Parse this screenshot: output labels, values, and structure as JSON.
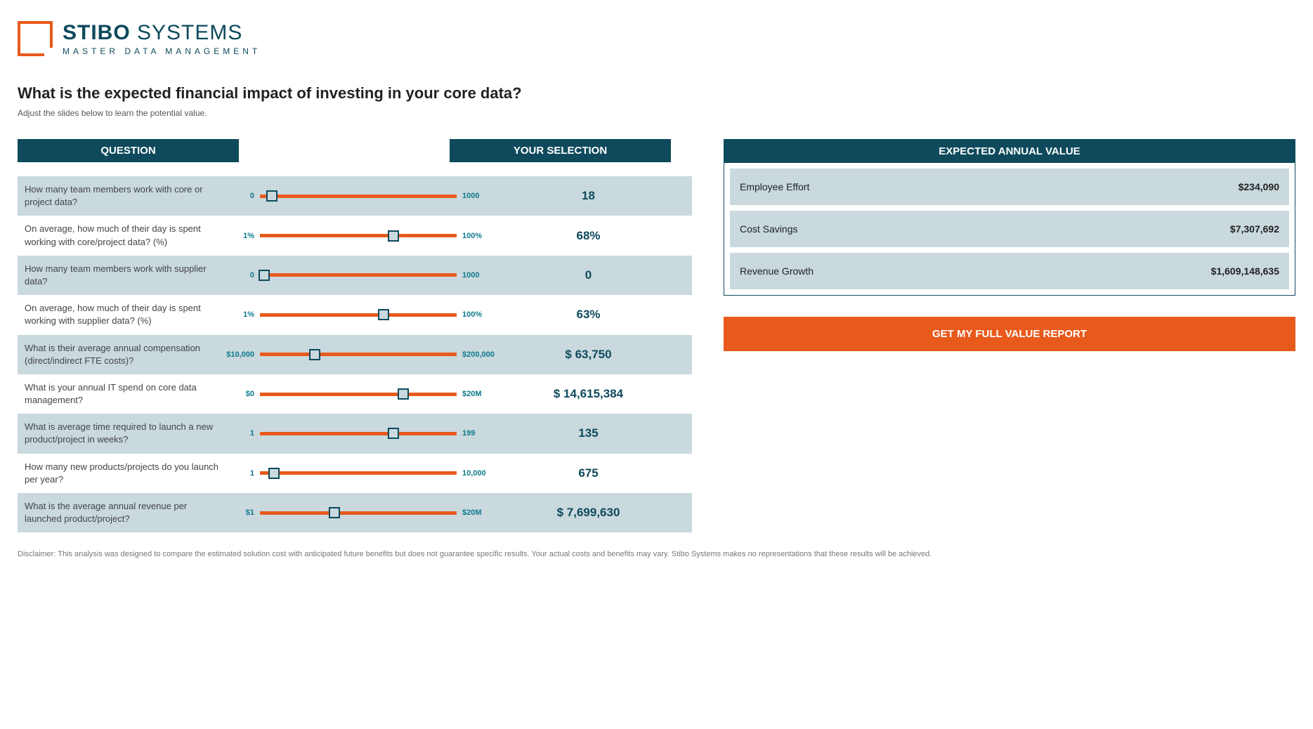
{
  "brand": {
    "name_bold": "STIBO",
    "name_light": " SYSTEMS",
    "tagline": "MASTER DATA MANAGEMENT",
    "accent_color": "#e85a1c",
    "dark_color": "#0e4a5c"
  },
  "page": {
    "title": "What is the expected financial impact of investing in your core data?",
    "subtitle": "Adjust the slides below to learn the potential value."
  },
  "headers": {
    "question": "QUESTION",
    "selection": "YOUR SELECTION"
  },
  "questions": [
    {
      "label": "How many team members work with core or project data?",
      "min": "0",
      "max": "1000",
      "value": "18",
      "thumb_pct": 6,
      "alt": true
    },
    {
      "label": "On average, how much of their day is spent working with core/project data? (%)",
      "min": "1%",
      "max": "100%",
      "value": "68%",
      "thumb_pct": 68,
      "alt": false
    },
    {
      "label": "How many team members work with supplier data?",
      "min": "0",
      "max": "1000",
      "value": "0",
      "thumb_pct": 2,
      "alt": true
    },
    {
      "label": "On average, how much of their day is spent working with supplier data? (%)",
      "min": "1%",
      "max": "100%",
      "value": "63%",
      "thumb_pct": 63,
      "alt": false
    },
    {
      "label": "What is their average annual compensation (direct/indirect FTE costs)?",
      "min": "$10,000",
      "max": "$200,000",
      "value": "$ 63,750",
      "thumb_pct": 28,
      "alt": true
    },
    {
      "label": "What is your annual IT spend on core data management?",
      "min": "$0",
      "max": "$20M",
      "value": "$ 14,615,384",
      "thumb_pct": 73,
      "alt": false
    },
    {
      "label": "What is average time required to launch a new product/project in weeks?",
      "min": "1",
      "max": "199",
      "value": "135",
      "thumb_pct": 68,
      "alt": true
    },
    {
      "label": "How many new products/projects do you launch per year?",
      "min": "1",
      "max": "10,000",
      "value": "675",
      "thumb_pct": 7,
      "alt": false
    },
    {
      "label": "What is the average annual revenue per launched product/project?",
      "min": "$1",
      "max": "$20M",
      "value": "$ 7,699,630",
      "thumb_pct": 38,
      "alt": true
    }
  ],
  "value_panel": {
    "header": "EXPECTED ANNUAL VALUE",
    "rows": [
      {
        "label": "Employee Effort",
        "amount": "$234,090"
      },
      {
        "label": "Cost Savings",
        "amount": "$7,307,692"
      },
      {
        "label": "Revenue Growth",
        "amount": "$1,609,148,635"
      }
    ]
  },
  "cta": "GET MY FULL VALUE REPORT",
  "disclaimer": "Disclaimer: This analysis was designed to compare the estimated solution cost with anticipated future benefits but does not guarantee specific results.  Your actual costs and benefits may vary.  Stibo Systems makes no representations that these results will be achieved."
}
